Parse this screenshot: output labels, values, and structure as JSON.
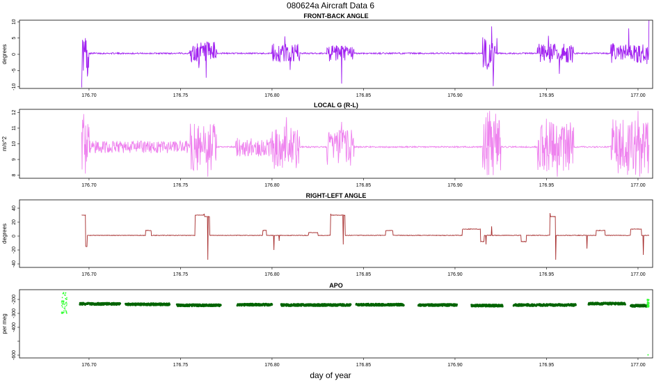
{
  "title": "080624a   Aircraft Data 6",
  "chart_data": [
    {
      "type": "line",
      "title": "FRONT-BACK ANGLE",
      "ylabel": "degrees",
      "color": "#a020f0",
      "xlim": [
        176.662,
        177.008
      ],
      "ylim": [
        -10.5,
        10.5
      ],
      "yticks": [
        10,
        5,
        0,
        -5,
        -10
      ],
      "xticks": [
        "176.70",
        "176.75",
        "176.80",
        "176.85",
        "176.90",
        "176.95",
        "177.00"
      ],
      "series_extent": [
        176.696,
        177.006
      ],
      "baseline": 0.3,
      "noise_segments": [
        {
          "x": [
            176.696,
            176.7
          ],
          "amp": 6
        },
        {
          "x": [
            176.755,
            176.77
          ],
          "amp": 3.5
        },
        {
          "x": [
            176.8,
            176.815
          ],
          "amp": 3
        },
        {
          "x": [
            176.83,
            176.845
          ],
          "amp": 2.5
        },
        {
          "x": [
            176.915,
            176.922
          ],
          "amp": 5
        },
        {
          "x": [
            176.945,
            176.965
          ],
          "amp": 3
        },
        {
          "x": [
            176.985,
            177.006
          ],
          "amp": 3
        }
      ],
      "spikes": [
        {
          "x": 176.696,
          "y": -10.2
        },
        {
          "x": 176.697,
          "y": 1.2
        },
        {
          "x": 176.699,
          "y": -6.8
        },
        {
          "x": 176.76,
          "y": -4.2
        },
        {
          "x": 176.764,
          "y": -7.2
        },
        {
          "x": 176.807,
          "y": 5.5
        },
        {
          "x": 176.81,
          "y": -4.8
        },
        {
          "x": 176.838,
          "y": -9.0
        },
        {
          "x": 176.92,
          "y": 8.6
        },
        {
          "x": 176.921,
          "y": -9.8
        },
        {
          "x": 176.923,
          "y": 5.0
        },
        {
          "x": 176.951,
          "y": 5.7
        },
        {
          "x": 176.957,
          "y": -6.0
        },
        {
          "x": 176.995,
          "y": 8.0
        },
        {
          "x": 177.006,
          "y": 10.4
        },
        {
          "x": 177.005,
          "y": -3.0
        }
      ]
    },
    {
      "type": "line",
      "title": "LOCAL G (R-L)",
      "ylabel": "m/s^2",
      "color": "#ee82ee",
      "xlim": [
        176.662,
        177.008
      ],
      "ylim": [
        7.8,
        12.2
      ],
      "yticks": [
        12,
        11,
        10,
        9,
        8
      ],
      "xticks": [
        "176.70",
        "176.75",
        "176.80",
        "176.85",
        "176.90",
        "176.95",
        "177.00"
      ],
      "series_extent": [
        176.696,
        177.006
      ],
      "baseline": 9.8,
      "noise_segments": [
        {
          "x": [
            176.696,
            176.7
          ],
          "amp": 2.0
        },
        {
          "x": [
            176.7,
            176.755
          ],
          "amp": 0.4
        },
        {
          "x": [
            176.755,
            176.77
          ],
          "amp": 1.5
        },
        {
          "x": [
            176.78,
            176.8
          ],
          "amp": 0.6
        },
        {
          "x": [
            176.8,
            176.815
          ],
          "amp": 1.4
        },
        {
          "x": [
            176.83,
            176.845
          ],
          "amp": 1.2
        },
        {
          "x": [
            176.915,
            176.925
          ],
          "amp": 2.2
        },
        {
          "x": [
            176.945,
            176.965
          ],
          "amp": 1.6
        },
        {
          "x": [
            176.985,
            177.006
          ],
          "amp": 1.8
        }
      ],
      "spikes": [
        {
          "x": 176.697,
          "y": 11.9
        },
        {
          "x": 176.698,
          "y": 8.1
        },
        {
          "x": 176.765,
          "y": 7.9
        },
        {
          "x": 176.808,
          "y": 11.7
        },
        {
          "x": 176.838,
          "y": 11.4
        },
        {
          "x": 176.919,
          "y": 12.1
        },
        {
          "x": 176.921,
          "y": 8.0
        },
        {
          "x": 176.95,
          "y": 11.6
        },
        {
          "x": 176.956,
          "y": 7.9
        },
        {
          "x": 177.0,
          "y": 12.1
        },
        {
          "x": 177.001,
          "y": 7.9
        }
      ]
    },
    {
      "type": "line",
      "title": "RIGHT-LEFT ANGLE",
      "ylabel": "degrees",
      "color": "#a52a2a",
      "xlim": [
        176.662,
        177.008
      ],
      "ylim": [
        -45,
        52
      ],
      "yticks": [
        40,
        20,
        0,
        -20,
        -40
      ],
      "xticks": [
        "176.70",
        "176.75",
        "176.80",
        "176.85",
        "176.90",
        "176.95",
        "177.00"
      ],
      "series_extent": [
        176.696,
        177.006
      ],
      "baseline": 1,
      "steps": [
        {
          "x": [
            176.696,
            176.698
          ],
          "y": 30
        },
        {
          "x": [
            176.698,
            176.699
          ],
          "y": -15
        },
        {
          "x": [
            176.731,
            176.734
          ],
          "y": 8
        },
        {
          "x": [
            176.758,
            176.763
          ],
          "y": 30
        },
        {
          "x": [
            176.763,
            176.766
          ],
          "y": 28
        },
        {
          "x": [
            176.795,
            176.797
          ],
          "y": 8
        },
        {
          "x": [
            176.82,
            176.825
          ],
          "y": 5
        },
        {
          "x": [
            176.832,
            176.84
          ],
          "y": 30
        },
        {
          "x": [
            176.862,
            176.866
          ],
          "y": 8
        },
        {
          "x": [
            176.904,
            176.914
          ],
          "y": 10
        },
        {
          "x": [
            176.914,
            176.916
          ],
          "y": -8
        },
        {
          "x": [
            176.936,
            176.939
          ],
          "y": -8
        },
        {
          "x": [
            176.952,
            176.955
          ],
          "y": 28
        },
        {
          "x": [
            176.977,
            176.982
          ],
          "y": 8
        },
        {
          "x": [
            176.996,
            177.002
          ],
          "y": 10
        }
      ],
      "spikes": [
        {
          "x": 176.763,
          "y": 32
        },
        {
          "x": 176.765,
          "y": -34
        },
        {
          "x": 176.801,
          "y": -20
        },
        {
          "x": 176.804,
          "y": -7
        },
        {
          "x": 176.832,
          "y": 32
        },
        {
          "x": 176.839,
          "y": -12
        },
        {
          "x": 176.917,
          "y": -12
        },
        {
          "x": 176.92,
          "y": 14
        },
        {
          "x": 176.952,
          "y": 33
        },
        {
          "x": 176.955,
          "y": -34
        },
        {
          "x": 176.972,
          "y": -18
        },
        {
          "x": 177.001,
          "y": 10
        },
        {
          "x": 177.003,
          "y": -27
        }
      ]
    },
    {
      "type": "scatter",
      "title": "APO",
      "ylabel": "per meg",
      "color": "#006400",
      "highlight_color": "#33ff33",
      "xlim": [
        176.662,
        177.008
      ],
      "ylim": [
        -620,
        -130
      ],
      "yticks": [
        -200,
        -300,
        -400,
        -500,
        -600
      ],
      "ytick_labels": [
        "-200",
        "-300",
        "-400",
        "",
        "-600"
      ],
      "xticks": [
        "176.70",
        "176.75",
        "176.80",
        "176.85",
        "176.90",
        "176.95",
        "177.00"
      ],
      "clusters": [
        {
          "x": [
            176.695,
            176.717
          ],
          "y": -232
        },
        {
          "x": [
            176.72,
            176.744
          ],
          "y": -235
        },
        {
          "x": [
            176.748,
            176.772
          ],
          "y": -242
        },
        {
          "x": [
            176.781,
            176.8
          ],
          "y": -238
        },
        {
          "x": [
            176.805,
            176.843
          ],
          "y": -240
        },
        {
          "x": [
            176.846,
            176.872
          ],
          "y": -238
        },
        {
          "x": [
            176.88,
            176.901
          ],
          "y": -240
        },
        {
          "x": [
            176.909,
            176.926
          ],
          "y": -244
        },
        {
          "x": [
            176.932,
            176.966
          ],
          "y": -240
        },
        {
          "x": [
            176.973,
            176.993
          ],
          "y": -230
        },
        {
          "x": [
            176.996,
            177.005
          ],
          "y": -245
        }
      ],
      "outliers": [
        {
          "x": [
            176.685,
            176.688
          ],
          "y": [
            -300,
            -150
          ]
        },
        {
          "x": [
            177.005,
            177.006
          ],
          "y": [
            -255,
            -195
          ]
        }
      ],
      "outlier_points": [
        {
          "x": 177.0055,
          "y": -598
        }
      ]
    }
  ],
  "xlabel": "day of year"
}
